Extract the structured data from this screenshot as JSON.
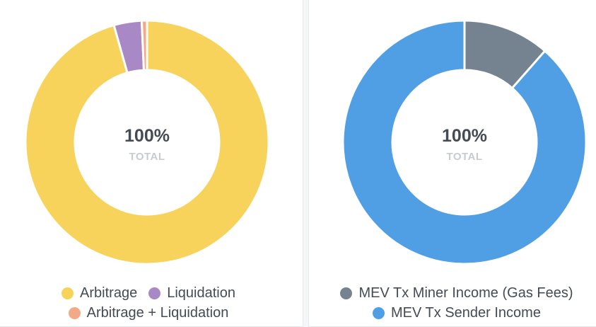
{
  "chart_data": [
    {
      "type": "pie",
      "title": "",
      "center_value": "100%",
      "center_label": "TOTAL",
      "categories": [
        "Arbitrage",
        "Liquidation",
        "Arbitrage + Liquidation"
      ],
      "values": [
        95.6,
        3.7,
        0.7
      ],
      "colors": [
        "#f7d35c",
        "#a989c5",
        "#f2a986"
      ],
      "legend_position": "bottom"
    },
    {
      "type": "pie",
      "title": "",
      "center_value": "100%",
      "center_label": "TOTAL",
      "categories": [
        "MEV Tx Miner Income (Gas Fees)",
        "MEV Tx Sender Income"
      ],
      "values": [
        11.5,
        88.5
      ],
      "colors": [
        "#74838f",
        "#509ee3"
      ],
      "legend_position": "bottom"
    }
  ]
}
